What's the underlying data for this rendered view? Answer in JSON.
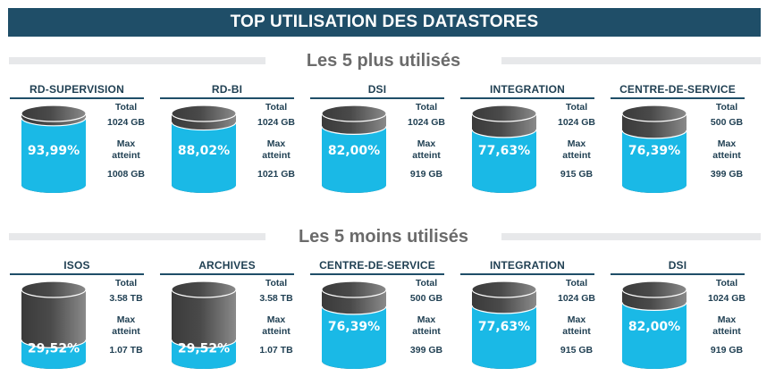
{
  "title": "TOP UTILISATION DES DATASTORES",
  "sections": [
    {
      "heading": "Les 5 plus utilisés",
      "datastores": [
        {
          "name": "RD-SUPERVISION",
          "percent": "93,99%",
          "fill": 0.9399,
          "total_label": "Total",
          "total": "1024 GB",
          "max_label": "Max atteint",
          "max": "1008 GB"
        },
        {
          "name": "RD-BI",
          "percent": "88,02%",
          "fill": 0.8802,
          "total_label": "Total",
          "total": "1024 GB",
          "max_label": "Max atteint",
          "max": "1021 GB"
        },
        {
          "name": "DSI",
          "percent": "82,00%",
          "fill": 0.82,
          "total_label": "Total",
          "total": "1024 GB",
          "max_label": "Max atteint",
          "max": "919 GB"
        },
        {
          "name": "INTEGRATION",
          "percent": "77,63%",
          "fill": 0.7763,
          "total_label": "Total",
          "total": "1024 GB",
          "max_label": "Max atteint",
          "max": "915 GB"
        },
        {
          "name": "CENTRE-DE-SERVICE",
          "percent": "76,39%",
          "fill": 0.7639,
          "total_label": "Total",
          "total": "500 GB",
          "max_label": "Max atteint",
          "max": "399 GB"
        }
      ]
    },
    {
      "heading": "Les 5 moins utilisés",
      "datastores": [
        {
          "name": "ISOS",
          "percent": "29,52%",
          "fill": 0.2952,
          "total_label": "Total",
          "total": "3.58 TB",
          "max_label": "Max atteint",
          "max": "1.07 TB"
        },
        {
          "name": "ARCHIVES",
          "percent": "29,52%",
          "fill": 0.2952,
          "total_label": "Total",
          "total": "3.58 TB",
          "max_label": "Max atteint",
          "max": "1.07 TB"
        },
        {
          "name": "CENTRE-DE-SERVICE",
          "percent": "76,39%",
          "fill": 0.7639,
          "total_label": "Total",
          "total": "500 GB",
          "max_label": "Max atteint",
          "max": "399 GB"
        },
        {
          "name": "INTEGRATION",
          "percent": "77,63%",
          "fill": 0.7763,
          "total_label": "Total",
          "total": "1024 GB",
          "max_label": "Max atteint",
          "max": "915 GB"
        },
        {
          "name": "DSI",
          "percent": "82,00%",
          "fill": 0.82,
          "total_label": "Total",
          "total": "1024 GB",
          "max_label": "Max atteint",
          "max": "919 GB"
        }
      ]
    }
  ],
  "colors": {
    "header_bg": "#1f4e68",
    "fill": "#1ab9e6",
    "empty_dark": "#3a3a3a",
    "empty_light": "#8a8a8a",
    "text_dark": "#1f3f52",
    "section_text": "#6b6b6b",
    "section_bar": "#e7e8ea"
  },
  "chart_data": [
    {
      "type": "bar",
      "title": "Les 5 plus utilisés",
      "categories": [
        "RD-SUPERVISION",
        "RD-BI",
        "DSI",
        "INTEGRATION",
        "CENTRE-DE-SERVICE"
      ],
      "values": [
        93.99,
        88.02,
        82.0,
        77.63,
        76.39
      ],
      "unit": "%",
      "total": [
        "1024 GB",
        "1024 GB",
        "1024 GB",
        "1024 GB",
        "500 GB"
      ],
      "max_atteint": [
        "1008 GB",
        "1021 GB",
        "919 GB",
        "915 GB",
        "399 GB"
      ],
      "ylim": [
        0,
        100
      ]
    },
    {
      "type": "bar",
      "title": "Les 5 moins utilisés",
      "categories": [
        "ISOS",
        "ARCHIVES",
        "CENTRE-DE-SERVICE",
        "INTEGRATION",
        "DSI"
      ],
      "values": [
        29.52,
        29.52,
        76.39,
        77.63,
        82.0
      ],
      "unit": "%",
      "total": [
        "3.58 TB",
        "3.58 TB",
        "500 GB",
        "1024 GB",
        "1024 GB"
      ],
      "max_atteint": [
        "1.07 TB",
        "1.07 TB",
        "399 GB",
        "915 GB",
        "919 GB"
      ],
      "ylim": [
        0,
        100
      ]
    }
  ]
}
